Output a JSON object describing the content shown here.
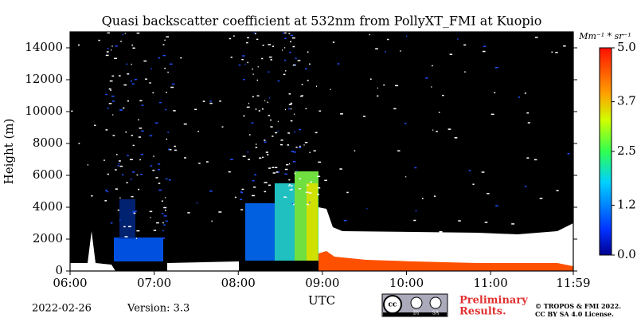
{
  "chart_data": {
    "type": "heatmap",
    "title": "Quasi backscatter coefficient at 532nm from PollyXT_FMI at Kuopio",
    "x_label": "UTC",
    "y_label": "Height (m)",
    "xlim": [
      6,
      11.9833
    ],
    "xticks": [
      {
        "value": 6,
        "label": "06:00"
      },
      {
        "value": 7,
        "label": "07:00"
      },
      {
        "value": 8,
        "label": "08:00"
      },
      {
        "value": 9,
        "label": "09:00"
      },
      {
        "value": 10,
        "label": "10:00"
      },
      {
        "value": 11,
        "label": "11:00"
      },
      {
        "value": 11.9833,
        "label": "11:59"
      }
    ],
    "ylim": [
      0,
      15000
    ],
    "yticks": [
      0,
      2000,
      4000,
      6000,
      8000,
      10000,
      12000,
      14000
    ],
    "colorbar_label": "Mm⁻¹ * sr⁻¹",
    "clim": [
      0,
      5
    ],
    "cticks": [
      {
        "value": 0,
        "label": "0.0"
      },
      1.2,
      2.5,
      3.7,
      {
        "value": 5,
        "label": "5.0"
      }
    ]
  },
  "footer": {
    "date": "2022-02-26",
    "version": "Version: 3.3",
    "preliminary": [
      "Preliminary",
      "Results."
    ],
    "license_logo": [
      "cc",
      "BY",
      "SA"
    ],
    "copyright": [
      "© TROPOS & FMI 2022.",
      "CC BY SA 4.0 License."
    ]
  }
}
